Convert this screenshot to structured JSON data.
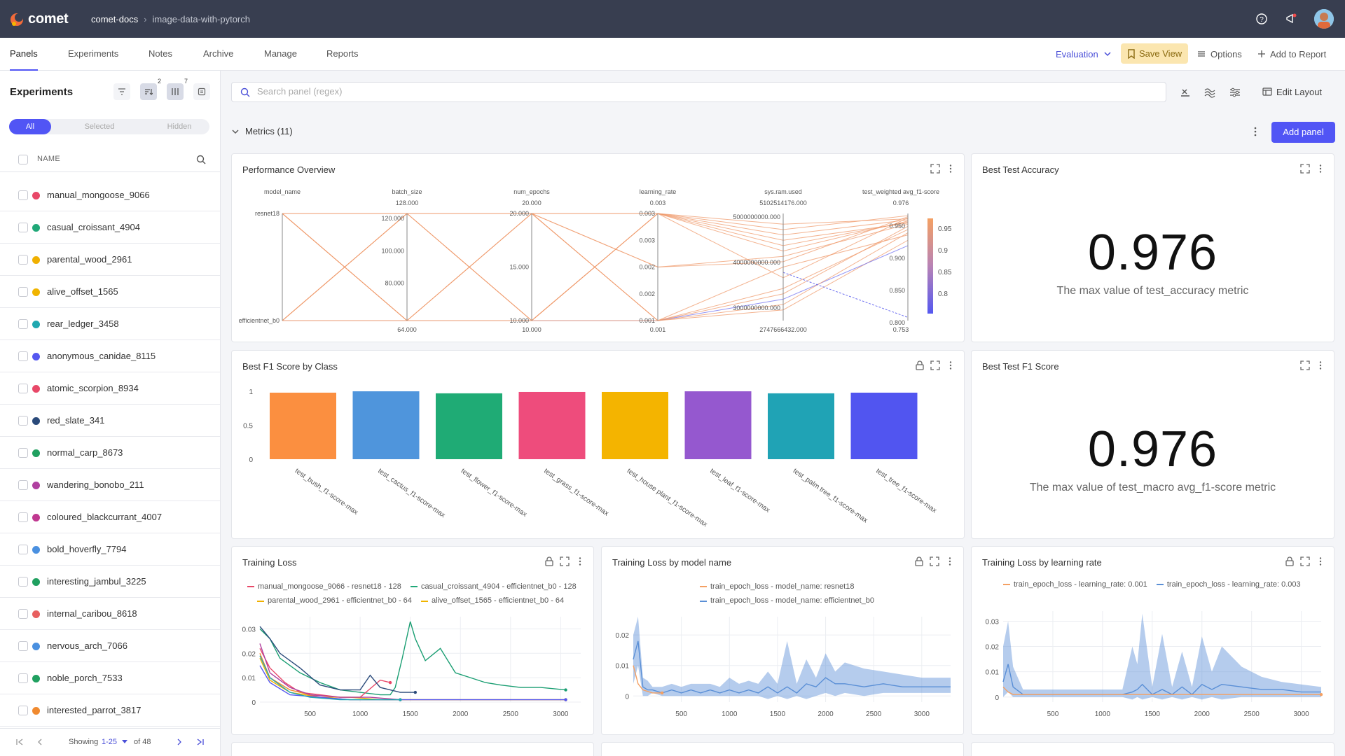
{
  "topbar": {
    "brand": "comet",
    "workspace": "comet-docs",
    "project": "image-data-with-pytorch",
    "icons": [
      "help-icon",
      "announcement-icon",
      "avatar"
    ]
  },
  "tabs": {
    "items": [
      "Panels",
      "Experiments",
      "Notes",
      "Archive",
      "Manage",
      "Reports"
    ],
    "active": "Panels",
    "evaluation": "Evaluation",
    "save_view": "Save View",
    "options": "Options",
    "add_to_report": "Add to Report"
  },
  "sidebar": {
    "title": "Experiments",
    "sort_badge": "2",
    "columns_badge": "7",
    "segments": [
      "All",
      "Selected",
      "Hidden"
    ],
    "column_header": "NAME",
    "rows": [
      {
        "name": "manual_mongoose_9066",
        "color": "#e84868"
      },
      {
        "name": "casual_croissant_4904",
        "color": "#20a878"
      },
      {
        "name": "parental_wood_2961",
        "color": "#f0b000"
      },
      {
        "name": "alive_offset_1565",
        "color": "#f0b400"
      },
      {
        "name": "rear_ledger_3458",
        "color": "#20a8b0"
      },
      {
        "name": "anonymous_canidae_8115",
        "color": "#5558f0"
      },
      {
        "name": "atomic_scorpion_8934",
        "color": "#e84868"
      },
      {
        "name": "red_slate_341",
        "color": "#2a4a7a"
      },
      {
        "name": "normal_carp_8673",
        "color": "#20a060"
      },
      {
        "name": "wandering_bonobo_211",
        "color": "#b040a0"
      },
      {
        "name": "coloured_blackcurrant_4007",
        "color": "#c03890"
      },
      {
        "name": "bold_hoverfly_7794",
        "color": "#4a90e0"
      },
      {
        "name": "interesting_jambul_3225",
        "color": "#20a060"
      },
      {
        "name": "internal_caribou_8618",
        "color": "#e86060"
      },
      {
        "name": "nervous_arch_7066",
        "color": "#4a90e0"
      },
      {
        "name": "noble_porch_7533",
        "color": "#20a060"
      },
      {
        "name": "interested_parrot_3817",
        "color": "#f08a30"
      }
    ],
    "pager": {
      "showing": "Showing",
      "range": "1-25",
      "of": "of 48"
    }
  },
  "main": {
    "search_placeholder": "Search panel (regex)",
    "edit_layout": "Edit Layout",
    "section": "Metrics (11)",
    "add_panel": "Add panel"
  },
  "panels": {
    "perf": {
      "title": "Performance Overview",
      "axes": [
        {
          "label": "model_name",
          "top": "",
          "bottom": "",
          "ticks": [
            "resnet18",
            "efficientnet_b0"
          ]
        },
        {
          "label": "batch_size",
          "top": "128.000",
          "bottom": "64.000",
          "ticks": [
            "120.000",
            "100.000",
            "80.000"
          ]
        },
        {
          "label": "num_epochs",
          "top": "20.000",
          "bottom": "10.000",
          "ticks": [
            "20.000",
            "15.000",
            "10.000"
          ]
        },
        {
          "label": "learning_rate",
          "top": "0.003",
          "bottom": "0.001",
          "ticks": [
            "0.003",
            "0.003",
            "0.002",
            "0.002",
            "0.001"
          ]
        },
        {
          "label": "sys.ram.used",
          "top": "5102514176.000",
          "bottom": "2747666432.000",
          "ticks": [
            "5000000000.000",
            "4000000000.000",
            "3000000000.000"
          ]
        },
        {
          "label": "test_weighted avg_f1-score",
          "top": "0.976",
          "bottom": "0.753",
          "ticks": [
            "0.950",
            "0.900",
            "0.850",
            "0.800"
          ]
        }
      ],
      "colorbar": [
        "0.95",
        "0.9",
        "0.85",
        "0.8"
      ]
    },
    "best_acc": {
      "title": "Best Test Accuracy",
      "value": "0.976",
      "caption": "The max value of test_accuracy metric"
    },
    "best_f1": {
      "title": "Best Test F1 Score",
      "value": "0.976",
      "caption": "The max value of test_macro avg_f1-score metric"
    },
    "f1_by_class": {
      "title": "Best F1 Score by Class"
    },
    "train_loss": {
      "title": "Training Loss"
    },
    "loss_by_model": {
      "title": "Training Loss by model name"
    },
    "loss_by_lr": {
      "title": "Training Loss by learning rate"
    }
  },
  "chart_data": [
    {
      "type": "bar",
      "title": "Best F1 Score by Class",
      "categories": [
        "test_bush_f1-score-max",
        "test_cactus_f1-score-max",
        "test_flower_f1-score-max",
        "test_grass_f1-score-max",
        "test_house plant_f1-score-max",
        "test_leaf_f1-score-max",
        "test_palm tree_f1-score-max",
        "test_tree_f1-score-max"
      ],
      "values": [
        0.98,
        1.0,
        0.97,
        0.99,
        0.99,
        1.0,
        0.97,
        0.98
      ],
      "colors": [
        "#fb8f40",
        "#4f95dc",
        "#1fab75",
        "#ee4c7c",
        "#f4b400",
        "#9558cf",
        "#20a3b5",
        "#5155f0"
      ],
      "yticks": [
        "0",
        "0.5",
        "1"
      ],
      "ylim": [
        0,
        1
      ]
    },
    {
      "type": "line",
      "title": "Training Loss",
      "legend": [
        "manual_mongoose_9066 - resnet18 - 128",
        "casual_croissant_4904 - efficientnet_b0 - 128",
        "parental_wood_2961 - efficientnet_b0 - 64",
        "alive_offset_1565 - efficientnet_b0 - 64"
      ],
      "legend_colors": [
        "#e84868",
        "#20a878",
        "#f0b000",
        "#f0b400"
      ],
      "xticks": [
        "500",
        "1000",
        "1500",
        "2000",
        "2500",
        "3000"
      ],
      "yticks": [
        "0",
        "0.01",
        "0.02",
        "0.03"
      ],
      "xlim": [
        0,
        3200
      ],
      "ylim": [
        0,
        0.035
      ],
      "series": [
        {
          "name": "casual_croissant_4904 - efficientnet_b0 - 128",
          "color": "#1a9e72",
          "x": [
            0,
            100,
            200,
            400,
            600,
            800,
            1000,
            1200,
            1300,
            1350,
            1420,
            1500,
            1550,
            1650,
            1800,
            1950,
            2100,
            2250,
            2400,
            2600,
            2800,
            3050
          ],
          "y": [
            0.03,
            0.026,
            0.018,
            0.012,
            0.008,
            0.005,
            0.004,
            0.003,
            0.003,
            0.006,
            0.018,
            0.033,
            0.026,
            0.017,
            0.022,
            0.012,
            0.01,
            0.008,
            0.007,
            0.006,
            0.006,
            0.005
          ]
        },
        {
          "name": "manual_mongoose_9066 - resnet18 - 128",
          "color": "#e84868",
          "x": [
            0,
            100,
            250,
            400,
            600,
            800,
            1000,
            1200,
            1300
          ],
          "y": [
            0.022,
            0.014,
            0.008,
            0.004,
            0.003,
            0.002,
            0.002,
            0.009,
            0.008
          ]
        },
        {
          "name": "red_slate_341",
          "color": "#2a4a7a",
          "x": [
            0,
            100,
            200,
            400,
            600,
            800,
            1000,
            1100,
            1200,
            1300,
            1400,
            1550
          ],
          "y": [
            0.031,
            0.026,
            0.02,
            0.014,
            0.007,
            0.005,
            0.005,
            0.011,
            0.006,
            0.005,
            0.004,
            0.004
          ]
        },
        {
          "name": "parental_wood_2961 - efficientnet_b0 - 64",
          "color": "#f0b000",
          "x": [
            0,
            100,
            300,
            600,
            900,
            1200,
            1500,
            1800,
            2100,
            2400,
            2700,
            3050
          ],
          "y": [
            0.018,
            0.009,
            0.004,
            0.002,
            0.002,
            0.001,
            0.001,
            0.001,
            0.001,
            0.001,
            0.001,
            0.001
          ]
        },
        {
          "name": "alive_offset_1565 - efficientnet_b0 - 64",
          "color": "#f08a30",
          "x": [
            0,
            100,
            300,
            600,
            900,
            1200,
            1500,
            1800,
            2100,
            2400,
            2700,
            3050
          ],
          "y": [
            0.02,
            0.01,
            0.005,
            0.002,
            0.001,
            0.001,
            0.001,
            0.001,
            0.001,
            0.001,
            0.001,
            0.001
          ]
        },
        {
          "name": "anonymous_canidae_8115",
          "color": "#5558f0",
          "x": [
            0,
            100,
            300,
            600,
            900,
            1200,
            1500,
            1800,
            2100,
            2400,
            2700,
            3050
          ],
          "y": [
            0.015,
            0.008,
            0.003,
            0.002,
            0.001,
            0.001,
            0.001,
            0.001,
            0.001,
            0.001,
            0.001,
            0.001
          ]
        },
        {
          "name": "wandering_bonobo_211",
          "color": "#b040a0",
          "x": [
            0,
            100,
            300,
            500,
            800,
            1100,
            1400
          ],
          "y": [
            0.024,
            0.012,
            0.006,
            0.003,
            0.002,
            0.002,
            0.001
          ]
        },
        {
          "name": "rear_ledger_3458",
          "color": "#20a8b0",
          "x": [
            0,
            100,
            300,
            500,
            800,
            1100,
            1400
          ],
          "y": [
            0.019,
            0.01,
            0.004,
            0.002,
            0.001,
            0.001,
            0.001
          ]
        }
      ]
    },
    {
      "type": "area",
      "title": "Training Loss by model name",
      "legend": [
        "train_epoch_loss - model_name: resnet18",
        "train_epoch_loss - model_name: efficientnet_b0"
      ],
      "legend_colors": [
        "#f4a063",
        "#5a8fd6"
      ],
      "xticks": [
        "500",
        "1000",
        "1500",
        "2000",
        "2500",
        "3000"
      ],
      "yticks": [
        "0",
        "0.01",
        "0.02"
      ],
      "xlim": [
        0,
        3300
      ],
      "ylim": [
        -0.002,
        0.026
      ],
      "series": [
        {
          "name": "train_epoch_loss - model_name: efficientnet_b0",
          "color": "#5a8fd6",
          "x": [
            0,
            50,
            100,
            150,
            200,
            300,
            400,
            500,
            600,
            700,
            800,
            900,
            1000,
            1100,
            1200,
            1300,
            1400,
            1500,
            1600,
            1700,
            1800,
            1900,
            2000,
            2100,
            2200,
            2400,
            2600,
            2800,
            3000,
            3300
          ],
          "y": [
            0.012,
            0.018,
            0.003,
            0.002,
            0.002,
            0.001,
            0.002,
            0.001,
            0.002,
            0.001,
            0.002,
            0.001,
            0.002,
            0.001,
            0.002,
            0.001,
            0.003,
            0.001,
            0.003,
            0.001,
            0.004,
            0.003,
            0.006,
            0.004,
            0.004,
            0.003,
            0.004,
            0.003,
            0.003,
            0.003
          ],
          "upper": [
            0.02,
            0.026,
            0.006,
            0.005,
            0.003,
            0.003,
            0.004,
            0.003,
            0.004,
            0.004,
            0.004,
            0.003,
            0.006,
            0.004,
            0.005,
            0.004,
            0.008,
            0.004,
            0.018,
            0.004,
            0.012,
            0.006,
            0.014,
            0.008,
            0.011,
            0.009,
            0.008,
            0.007,
            0.006,
            0.006
          ],
          "lower": [
            0.004,
            0.01,
            0.0,
            0.0,
            0.001,
            0.0,
            0.0,
            0.0,
            0.0,
            0.0,
            0.0,
            0.0,
            0.0,
            0.0,
            0.0,
            0.0,
            -0.001,
            0.0,
            -0.001,
            0.0,
            -0.001,
            0.0,
            0.001,
            0.0,
            0.001,
            0.0,
            0.001,
            0.001,
            0.001,
            0.001
          ]
        },
        {
          "name": "train_epoch_loss - model_name: resnet18",
          "color": "#f4a063",
          "x": [
            0,
            50,
            100,
            200,
            300
          ],
          "y": [
            0.01,
            0.004,
            0.002,
            0.001,
            0.001
          ]
        }
      ]
    },
    {
      "type": "area",
      "title": "Training Loss by learning rate",
      "legend": [
        "train_epoch_loss - learning_rate: 0.001",
        "train_epoch_loss - learning_rate: 0.003"
      ],
      "legend_colors": [
        "#f4a063",
        "#5a8fd6"
      ],
      "xticks": [
        "500",
        "1000",
        "1500",
        "2000",
        "2500",
        "3000"
      ],
      "yticks": [
        "0",
        "0.01",
        "0.02",
        "0.03"
      ],
      "xlim": [
        0,
        3200
      ],
      "ylim": [
        -0.002,
        0.034
      ],
      "series": [
        {
          "name": "train_epoch_loss - learning_rate: 0.003",
          "color": "#5a8fd6",
          "x": [
            0,
            50,
            100,
            200,
            300,
            500,
            700,
            900,
            1100,
            1200,
            1300,
            1350,
            1400,
            1500,
            1600,
            1700,
            1800,
            1900,
            2000,
            2100,
            2200,
            2400,
            2600,
            2800,
            3000,
            3200
          ],
          "y": [
            0.006,
            0.013,
            0.004,
            0.001,
            0.001,
            0.001,
            0.001,
            0.001,
            0.001,
            0.001,
            0.002,
            0.003,
            0.005,
            0.001,
            0.003,
            0.001,
            0.004,
            0.001,
            0.005,
            0.003,
            0.005,
            0.004,
            0.003,
            0.003,
            0.002,
            0.002
          ],
          "upper": [
            0.02,
            0.03,
            0.012,
            0.003,
            0.003,
            0.003,
            0.003,
            0.003,
            0.003,
            0.003,
            0.02,
            0.013,
            0.033,
            0.004,
            0.025,
            0.004,
            0.018,
            0.004,
            0.024,
            0.01,
            0.02,
            0.012,
            0.008,
            0.006,
            0.005,
            0.004
          ],
          "lower": [
            0.0,
            0.002,
            0.0,
            0.0,
            0.0,
            0.0,
            0.0,
            0.0,
            0.0,
            0.0,
            -0.001,
            0.0,
            -0.001,
            0.0,
            -0.001,
            0.0,
            -0.001,
            0.0,
            -0.001,
            0.0,
            -0.001,
            0.0,
            0.0,
            0.0,
            0.0,
            0.0
          ]
        },
        {
          "name": "train_epoch_loss - learning_rate: 0.001",
          "color": "#f4a063",
          "x": [
            0,
            50,
            100,
            300,
            600,
            900,
            1200,
            1500,
            1800,
            2100,
            2400,
            2700,
            3000,
            3200
          ],
          "y": [
            0.004,
            0.002,
            0.001,
            0.001,
            0.001,
            0.001,
            0.001,
            0.001,
            0.001,
            0.001,
            0.001,
            0.001,
            0.001,
            0.001
          ]
        }
      ]
    }
  ]
}
